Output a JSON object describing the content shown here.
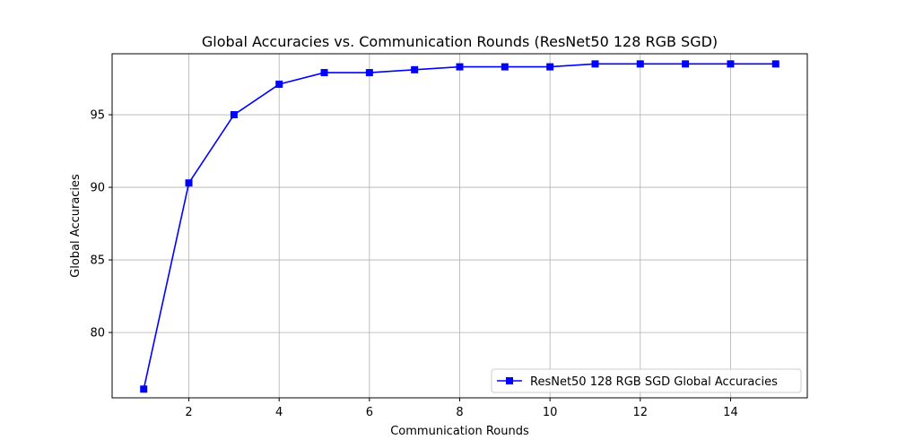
{
  "chart_data": {
    "type": "line",
    "title": "Global Accuracies vs. Communication Rounds (ResNet50 128 RGB SGD)",
    "xlabel": "Communication Rounds",
    "ylabel": "Global Accuracies",
    "xlim": [
      0.3,
      15.7
    ],
    "ylim": [
      75.5,
      99.2
    ],
    "xticks": [
      2,
      4,
      6,
      8,
      10,
      12,
      14
    ],
    "yticks": [
      80,
      85,
      90,
      95
    ],
    "grid": true,
    "legend_position": "lower-right",
    "series": [
      {
        "name": "ResNet50 128 RGB SGD Global Accuracies",
        "color": "#0000ff",
        "marker": "square",
        "x": [
          1,
          2,
          3,
          4,
          5,
          6,
          7,
          8,
          9,
          10,
          11,
          12,
          13,
          14,
          15
        ],
        "values": [
          76.1,
          90.3,
          95.0,
          97.1,
          97.9,
          97.9,
          98.1,
          98.3,
          98.3,
          98.3,
          98.5,
          98.5,
          98.5,
          98.5,
          98.5
        ]
      }
    ]
  }
}
